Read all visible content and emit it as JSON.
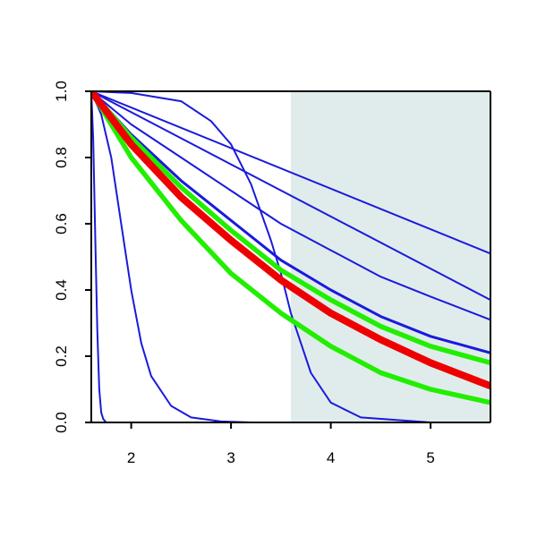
{
  "chart_data": {
    "type": "line",
    "title": "",
    "xlabel": "",
    "ylabel": "",
    "xlim": [
      1.6,
      5.6
    ],
    "ylim": [
      0.0,
      1.0
    ],
    "xticks": [
      2,
      3,
      4,
      5
    ],
    "yticks": [
      0.0,
      0.2,
      0.4,
      0.6,
      0.8,
      1.0
    ],
    "xtick_labels": [
      "2",
      "3",
      "4",
      "5"
    ],
    "ytick_labels": [
      "0.0",
      "0.2",
      "0.4",
      "0.6",
      "0.8",
      "1.0"
    ],
    "grid": false,
    "legend": "none",
    "shaded_region": {
      "x": [
        3.6,
        5.6
      ],
      "color": "#e0ecec"
    },
    "series": [
      {
        "color": "#1a1adc",
        "width": "thin",
        "x": [
          1.6,
          5.6
        ],
        "y": [
          1.0,
          0.51
        ]
      },
      {
        "color": "#1a1adc",
        "width": "thin",
        "x": [
          1.6,
          5.6
        ],
        "y": [
          1.0,
          0.37
        ]
      },
      {
        "color": "#1a1adc",
        "width": "thin",
        "x": [
          1.6,
          2.0,
          2.5,
          3.0,
          3.5,
          4.0,
          4.5,
          5.0,
          5.6
        ],
        "y": [
          1.0,
          0.9,
          0.8,
          0.7,
          0.6,
          0.52,
          0.44,
          0.38,
          0.31
        ]
      },
      {
        "color": "#1a1adc",
        "width": "medium",
        "x": [
          1.6,
          2.0,
          2.5,
          3.0,
          3.5,
          4.0,
          4.5,
          5.0,
          5.6
        ],
        "y": [
          1.0,
          0.87,
          0.73,
          0.61,
          0.49,
          0.4,
          0.32,
          0.26,
          0.21
        ]
      },
      {
        "color": "#1a1adc",
        "width": "thin",
        "x": [
          1.6,
          2.0,
          2.5,
          2.8,
          3.0,
          3.2,
          3.4,
          3.5,
          3.6,
          3.8,
          4.0,
          4.3,
          5.0,
          5.6
        ],
        "y": [
          1.0,
          0.995,
          0.97,
          0.91,
          0.84,
          0.72,
          0.55,
          0.45,
          0.33,
          0.15,
          0.06,
          0.015,
          0.0,
          0.0
        ]
      },
      {
        "color": "#1a1adc",
        "width": "thin",
        "x": [
          1.6,
          1.7,
          1.8,
          1.9,
          2.0,
          2.1,
          2.2,
          2.4,
          2.6,
          2.9,
          3.2,
          5.6
        ],
        "y": [
          1.0,
          0.93,
          0.8,
          0.6,
          0.4,
          0.24,
          0.14,
          0.05,
          0.015,
          0.003,
          0.0,
          0.0
        ]
      },
      {
        "color": "#1a1adc",
        "width": "thin",
        "x": [
          1.6,
          1.62,
          1.64,
          1.66,
          1.68,
          1.7,
          1.72,
          1.75,
          5.6
        ],
        "y": [
          1.0,
          0.85,
          0.55,
          0.28,
          0.1,
          0.03,
          0.01,
          0.0,
          0.0
        ]
      },
      {
        "color": "#22ee00",
        "width": "thick",
        "x": [
          1.6,
          2.0,
          2.5,
          3.0,
          3.5,
          4.0,
          4.5,
          5.0,
          5.6
        ],
        "y": [
          1.0,
          0.86,
          0.71,
          0.58,
          0.46,
          0.37,
          0.29,
          0.23,
          0.18
        ]
      },
      {
        "color": "#22ee00",
        "width": "thick",
        "x": [
          1.6,
          2.0,
          2.5,
          3.0,
          3.5,
          4.0,
          4.5,
          5.0,
          5.6
        ],
        "y": [
          1.0,
          0.8,
          0.61,
          0.45,
          0.33,
          0.23,
          0.15,
          0.1,
          0.06
        ]
      },
      {
        "color": "#ee0000",
        "width": "very-thick",
        "x": [
          1.6,
          2.0,
          2.5,
          3.0,
          3.5,
          4.0,
          4.5,
          5.0,
          5.6
        ],
        "y": [
          1.0,
          0.84,
          0.68,
          0.55,
          0.43,
          0.33,
          0.25,
          0.18,
          0.11
        ]
      }
    ]
  }
}
